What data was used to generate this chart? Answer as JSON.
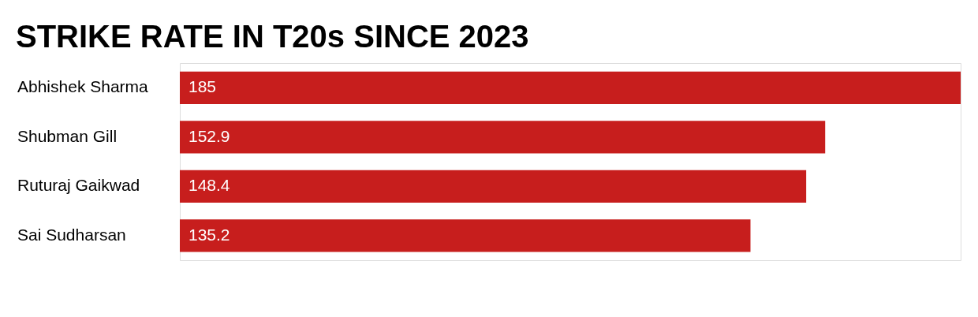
{
  "chart_data": {
    "type": "bar",
    "orientation": "horizontal",
    "title": "STRIKE RATE IN T20s SINCE 2023",
    "categories": [
      "Abhishek Sharma",
      "Shubman Gill",
      "Ruturaj Gaikwad",
      "Sai Sudharsan"
    ],
    "values": [
      185,
      152.9,
      148.4,
      135.2
    ],
    "color": "#c71e1d",
    "data_labels": true
  }
}
